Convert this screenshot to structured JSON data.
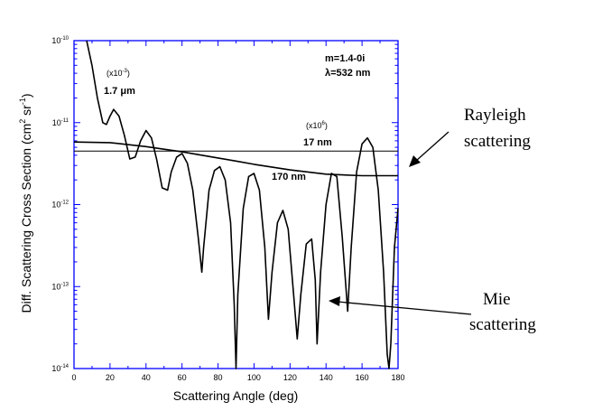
{
  "chart_data": {
    "type": "line",
    "xlabel": "Scattering Angle (deg)",
    "ylabel_main": "Diff. Scattering Cross Section (cm",
    "ylabel_sup1": "2",
    "ylabel_mid": " sr",
    "ylabel_sup2": "-1",
    "ylabel_end": ")",
    "xlim": [
      0,
      180
    ],
    "ylim": [
      1e-14,
      1e-10
    ],
    "yscale": "log",
    "x_ticks": [
      "0",
      "20",
      "40",
      "60",
      "80",
      "100",
      "120",
      "140",
      "160",
      "180"
    ],
    "y_ticks": [
      {
        "base": "10",
        "exp": "-10",
        "value": 1e-10
      },
      {
        "base": "10",
        "exp": "-11",
        "value": 1e-11
      },
      {
        "base": "10",
        "exp": "-12",
        "value": 1e-12
      },
      {
        "base": "10",
        "exp": "-13",
        "value": 1e-13
      },
      {
        "base": "10",
        "exp": "-14",
        "value": 1e-14
      }
    ],
    "annotations": {
      "params_m": "m=1.4-0i",
      "params_lambda": "λ=532 nm",
      "mie_factor": "(x10",
      "mie_factor_exp": "-3",
      "mie_factor_end": ")",
      "mie_size": "1.7 μm",
      "ray_factor": "(x10",
      "ray_factor_exp": "6",
      "ray_factor_end": ")",
      "ray_size": "17 nm",
      "mid_size": "170 nm"
    },
    "callouts": {
      "rayleigh_line1": "Rayleigh",
      "rayleigh_line2": "scattering",
      "mie_line1": "Mie",
      "mie_line2": "scattering"
    },
    "series": [
      {
        "x": [
          0,
          20,
          40,
          60,
          80,
          100,
          120,
          140,
          160,
          180
        ],
        "y": [
          4.5e-12,
          4.5e-12,
          4.5e-12,
          4.5e-12,
          4.5e-12,
          4.5e-12,
          4.5e-12,
          4.5e-12,
          4.5e-12,
          4.5e-12
        ]
      },
      {
        "x": [
          0,
          20,
          40,
          60,
          80,
          90,
          100,
          120,
          140,
          160,
          175,
          180
        ],
        "y": [
          5.8e-12,
          5.7e-12,
          5.1e-12,
          4.4e-12,
          3.7e-12,
          3.4e-12,
          3.1e-12,
          2.65e-12,
          2.35e-12,
          2.25e-12,
          2.25e-12,
          2.25e-12
        ]
      },
      {
        "x": [
          7,
          10,
          13,
          16,
          18,
          20,
          22,
          25,
          28,
          31,
          34,
          37,
          40,
          43,
          46,
          49,
          52,
          54,
          57,
          60,
          63,
          66,
          69,
          71,
          72,
          75,
          78,
          81,
          84,
          87,
          89,
          90,
          91,
          94,
          97,
          100,
          103,
          106,
          108,
          110,
          113,
          116,
          119,
          122,
          124,
          126,
          129,
          132,
          134,
          135,
          137,
          140,
          143,
          146,
          149,
          152,
          154,
          157,
          160,
          163,
          166,
          169,
          172,
          174,
          175,
          176,
          178,
          180
        ],
        "y": [
          1e-10,
          5e-11,
          2e-11,
          1e-11,
          9.5e-12,
          1.2e-11,
          1.45e-11,
          1.2e-11,
          7e-12,
          3.6e-12,
          3.8e-12,
          6e-12,
          8e-12,
          6.5e-12,
          3.5e-12,
          1.6e-12,
          1.5e-12,
          2.5e-12,
          3.8e-12,
          4.2e-12,
          3.2e-12,
          1.5e-12,
          4e-13,
          1.5e-13,
          3e-13,
          1.5e-12,
          2.6e-12,
          2.9e-12,
          2e-12,
          6e-13,
          6e-14,
          1e-14,
          8e-14,
          9e-13,
          2.2e-12,
          2.4e-12,
          1.5e-12,
          3e-13,
          4e-14,
          1.5e-13,
          6e-13,
          8.5e-13,
          5e-13,
          8e-14,
          2.3e-14,
          8e-14,
          3.3e-13,
          3.8e-13,
          1.2e-13,
          2e-14,
          1.5e-13,
          1e-12,
          2.4e-12,
          2.2e-12,
          4e-13,
          5e-14,
          3e-13,
          2.5e-12,
          5.5e-12,
          6.5e-12,
          5e-12,
          1.5e-12,
          1.5e-13,
          1.5e-14,
          1e-14,
          2e-14,
          3e-13,
          9e-13
        ]
      }
    ]
  }
}
